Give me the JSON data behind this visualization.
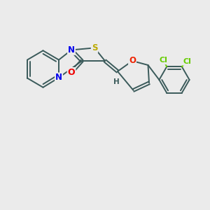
{
  "bg_color": "#ebebeb",
  "bond_color": "#3a5a5a",
  "bond_width": 1.4,
  "atom_colors": {
    "N": "#0000ee",
    "O_carbonyl": "#ee0000",
    "O_furan": "#ee2200",
    "S": "#bbaa00",
    "Cl": "#66cc00",
    "C": "#3a5a5a",
    "H": "#3a5a5a"
  },
  "figsize": [
    3.0,
    3.0
  ],
  "dpi": 100
}
